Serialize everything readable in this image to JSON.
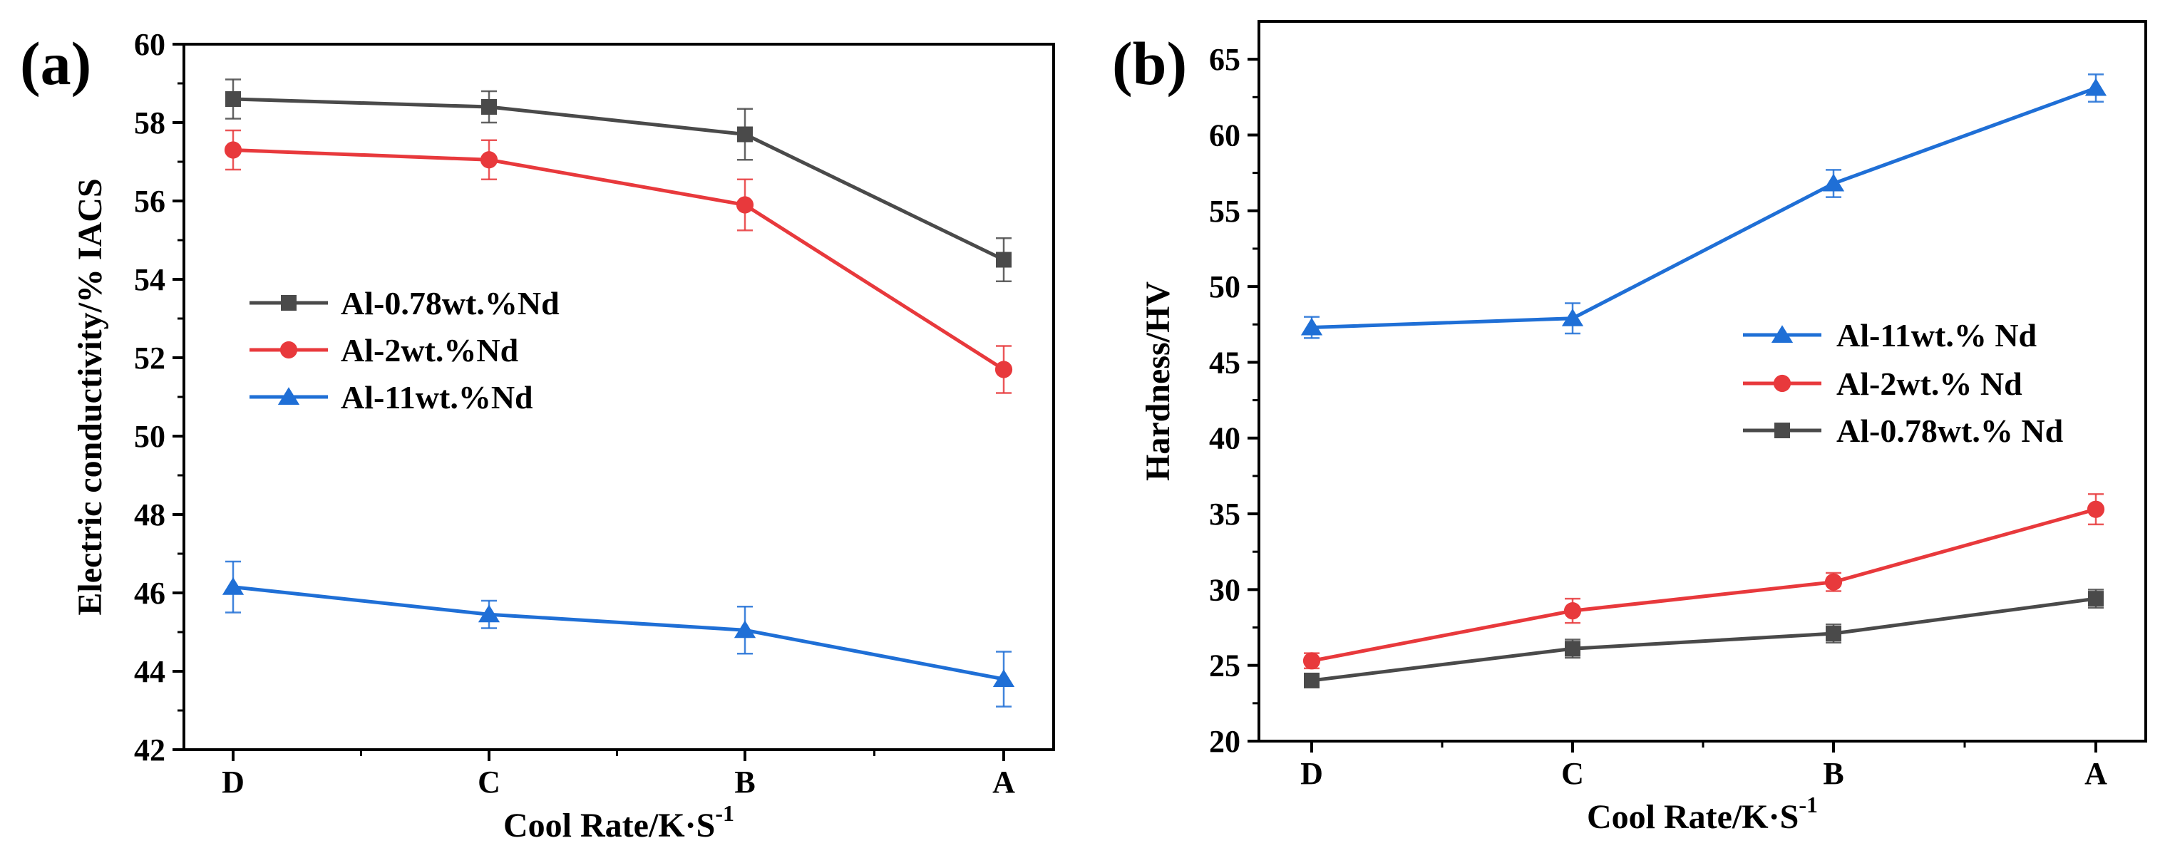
{
  "chart_data": [
    {
      "type": "line",
      "panel_label": "(a)",
      "categories": [
        "D",
        "C",
        "B",
        "A"
      ],
      "xlabel": "Cool Rate/K·S",
      "xlabel_sup": "-1",
      "ylabel": "Electric conductivity/% IACS",
      "ylim": [
        42,
        60
      ],
      "yticks": [
        42,
        44,
        46,
        48,
        50,
        52,
        54,
        56,
        58,
        60
      ],
      "legend_position": "center-left",
      "series": [
        {
          "name": "Al-0.78wt.%Nd",
          "color": "#4a4a4a",
          "marker": "square",
          "values": [
            58.6,
            58.4,
            57.7,
            54.5
          ],
          "errors": [
            0.5,
            0.4,
            0.65,
            0.55
          ]
        },
        {
          "name": "Al-2wt.%Nd",
          "color": "#e8393c",
          "marker": "circle",
          "values": [
            57.3,
            57.05,
            55.9,
            51.7
          ],
          "errors": [
            0.5,
            0.5,
            0.65,
            0.6
          ]
        },
        {
          "name": "Al-11wt.%Nd",
          "color": "#1f6fd6",
          "marker": "triangle",
          "values": [
            46.15,
            45.45,
            45.05,
            43.8
          ],
          "errors": [
            0.65,
            0.35,
            0.6,
            0.7
          ]
        }
      ]
    },
    {
      "type": "line",
      "panel_label": "(b)",
      "categories": [
        "D",
        "C",
        "B",
        "A"
      ],
      "xlabel": "Cool Rate/K·S",
      "xlabel_sup": "-1",
      "ylabel": "Hardness/HV",
      "ylim": [
        20,
        67.5
      ],
      "yticks": [
        20,
        25,
        30,
        35,
        40,
        45,
        50,
        55,
        60,
        65
      ],
      "legend_position": "center-right",
      "series": [
        {
          "name": "Al-11wt.% Nd",
          "color": "#1f6fd6",
          "marker": "triangle",
          "values": [
            47.3,
            47.9,
            56.8,
            63.1
          ],
          "errors": [
            0.7,
            1.0,
            0.9,
            0.9
          ]
        },
        {
          "name": "Al-2wt.% Nd",
          "color": "#e8393c",
          "marker": "circle",
          "values": [
            25.3,
            28.6,
            30.5,
            35.3
          ],
          "errors": [
            0.5,
            0.8,
            0.6,
            1.0
          ]
        },
        {
          "name": "Al-0.78wt.% Nd",
          "color": "#4a4a4a",
          "marker": "square",
          "values": [
            24.0,
            26.1,
            27.1,
            29.4
          ],
          "errors": [
            0.4,
            0.6,
            0.6,
            0.6
          ]
        }
      ]
    }
  ]
}
